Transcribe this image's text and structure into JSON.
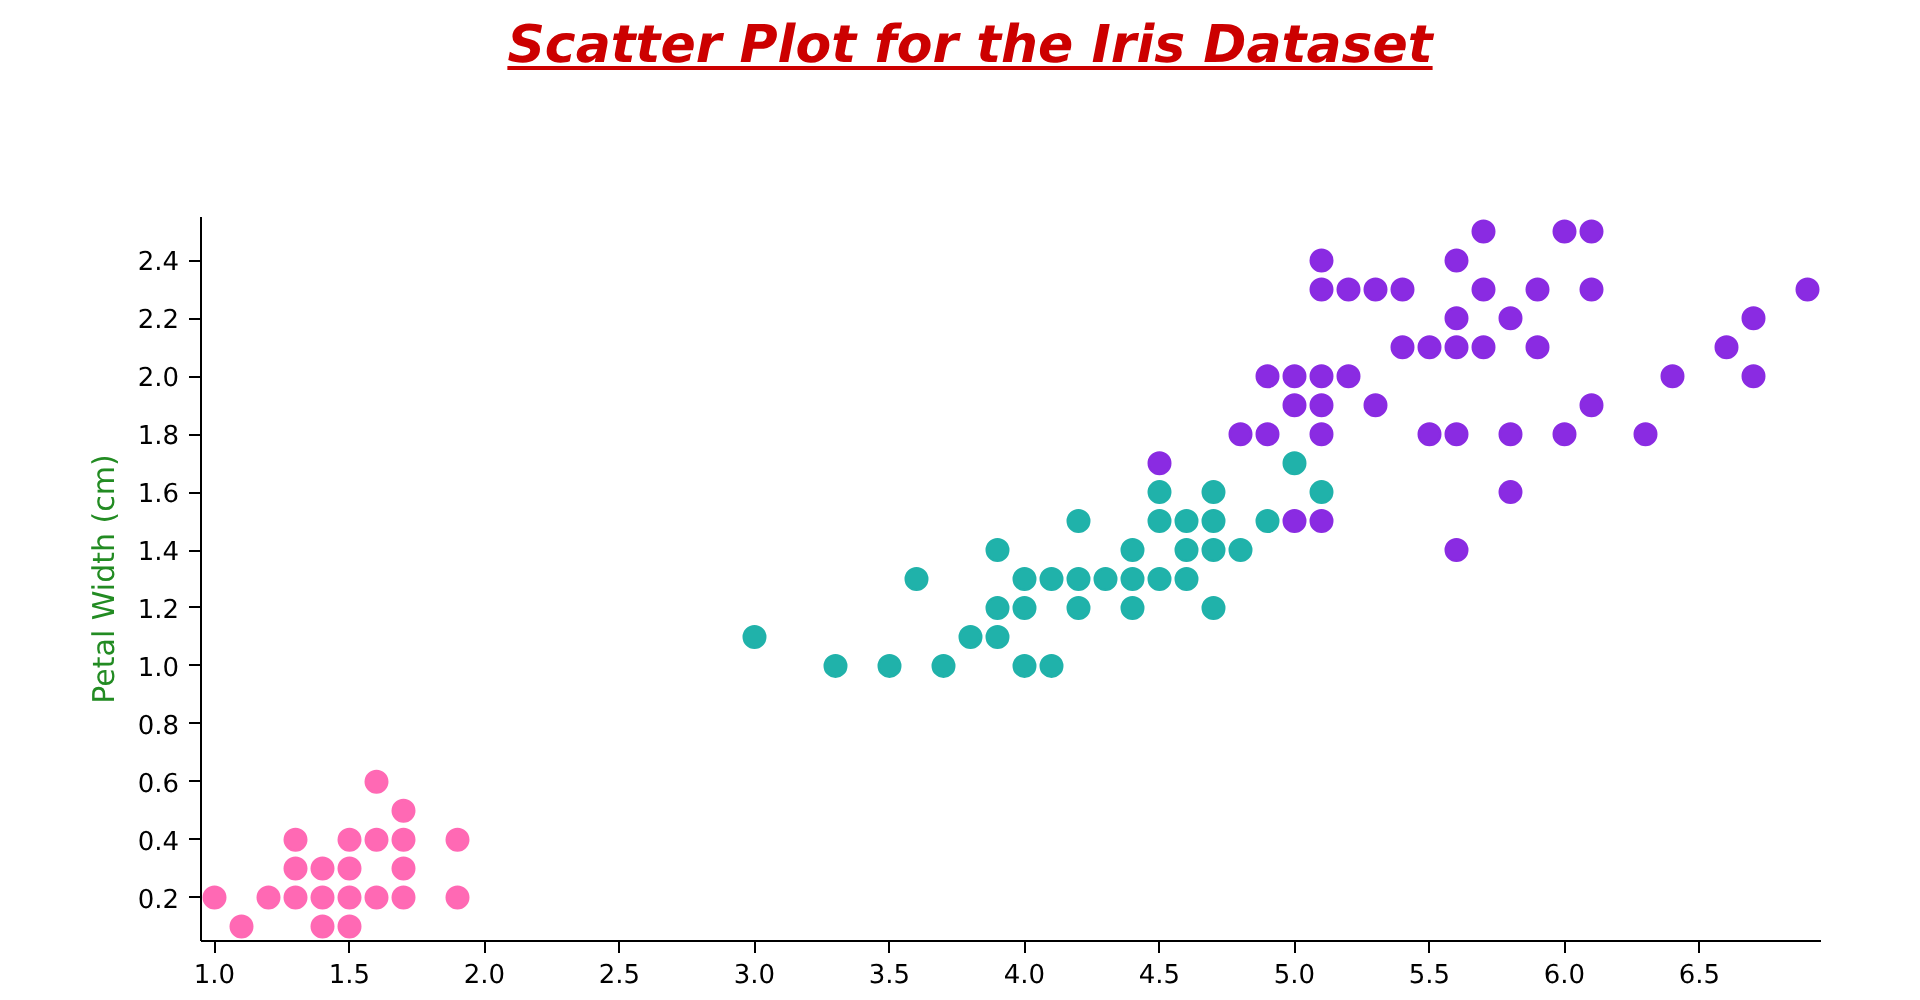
{
  "chart_data": {
    "type": "scatter",
    "title": "Scatter Plot for the Iris Dataset",
    "ylabel": "Petal Width (cm)",
    "xlim": [
      0.95,
      6.95
    ],
    "xticks": [
      {
        "value": 1.0,
        "label": "1.0"
      },
      {
        "value": 1.5,
        "label": "1.5"
      },
      {
        "value": 2.0,
        "label": "2.0"
      },
      {
        "value": 2.5,
        "label": "2.5"
      },
      {
        "value": 3.0,
        "label": "3.0"
      },
      {
        "value": 3.5,
        "label": "3.5"
      },
      {
        "value": 4.0,
        "label": "4.0"
      },
      {
        "value": 4.5,
        "label": "4.5"
      },
      {
        "value": 5.0,
        "label": "5.0"
      },
      {
        "value": 5.5,
        "label": "5.5"
      },
      {
        "value": 6.0,
        "label": "6.0"
      },
      {
        "value": 6.5,
        "label": "6.5"
      }
    ],
    "ylim": [
      0.05,
      2.55
    ],
    "yticks": [
      0.2,
      0.4,
      0.6,
      0.8,
      {
        "value": 1.0,
        "label": "1.0"
      },
      1.2,
      1.4,
      1.6,
      1.8,
      {
        "value": 2.0,
        "label": "2.0"
      },
      2.2,
      2.4
    ],
    "grid": false,
    "marker": "circle",
    "series": [
      {
        "color": "#ff69b4",
        "x": [
          1.4,
          1.3,
          1.5,
          1.7,
          1.4,
          1.5,
          1.6,
          1.4,
          1.1,
          1.2,
          1.5,
          1.3,
          1.7,
          1.5,
          1.7,
          1.0,
          1.7,
          1.9,
          1.6,
          1.3,
          1.6,
          1.9
        ],
        "values": [
          0.2,
          0.2,
          0.2,
          0.4,
          0.3,
          0.1,
          0.2,
          0.1,
          0.1,
          0.2,
          0.4,
          0.4,
          0.3,
          0.3,
          0.2,
          0.2,
          0.5,
          0.2,
          0.4,
          0.3,
          0.6,
          0.4
        ]
      },
      {
        "color": "#20b2aa",
        "x": [
          4.7,
          4.5,
          4.9,
          4.0,
          4.6,
          4.5,
          4.7,
          3.3,
          4.6,
          3.9,
          3.5,
          4.2,
          4.0,
          3.6,
          4.4,
          4.1,
          3.9,
          4.7,
          4.3,
          4.8,
          5.0,
          3.8,
          3.7,
          3.9,
          5.1,
          4.5,
          4.7,
          4.4,
          4.1,
          4.4,
          4.6,
          4.0,
          4.2,
          4.2,
          3.0
        ],
        "values": [
          1.4,
          1.5,
          1.5,
          1.3,
          1.5,
          1.3,
          1.6,
          1.0,
          1.3,
          1.4,
          1.0,
          1.5,
          1.0,
          1.3,
          1.4,
          1.0,
          1.1,
          1.2,
          1.3,
          1.4,
          1.7,
          1.1,
          1.0,
          1.2,
          1.6,
          1.6,
          1.5,
          1.3,
          1.3,
          1.2,
          1.4,
          1.2,
          1.3,
          1.2,
          1.1
        ]
      },
      {
        "color": "#8a2be2",
        "x": [
          6.0,
          5.1,
          5.9,
          5.6,
          5.8,
          6.6,
          4.5,
          6.3,
          5.8,
          6.1,
          5.1,
          5.3,
          5.5,
          5.0,
          5.1,
          5.3,
          5.5,
          6.7,
          6.9,
          5.0,
          5.7,
          4.9,
          6.7,
          4.9,
          5.7,
          6.0,
          4.8,
          5.6,
          5.8,
          6.1,
          6.4,
          5.6,
          5.1,
          5.6,
          6.1,
          5.6,
          5.4,
          5.1,
          5.9,
          5.7,
          5.2,
          5.0,
          5.2,
          5.4,
          5.1
        ],
        "values": [
          2.5,
          1.9,
          2.1,
          1.8,
          2.2,
          2.1,
          1.7,
          1.8,
          1.8,
          2.5,
          2.0,
          1.9,
          2.1,
          2.0,
          2.4,
          2.3,
          1.8,
          2.2,
          2.3,
          1.5,
          2.3,
          2.0,
          2.0,
          1.8,
          2.1,
          1.8,
          1.8,
          2.1,
          1.6,
          1.9,
          2.0,
          2.2,
          1.5,
          1.4,
          2.3,
          2.4,
          2.1,
          2.3,
          2.3,
          2.5,
          2.3,
          1.9,
          2.0,
          2.3,
          1.8
        ]
      }
    ]
  }
}
